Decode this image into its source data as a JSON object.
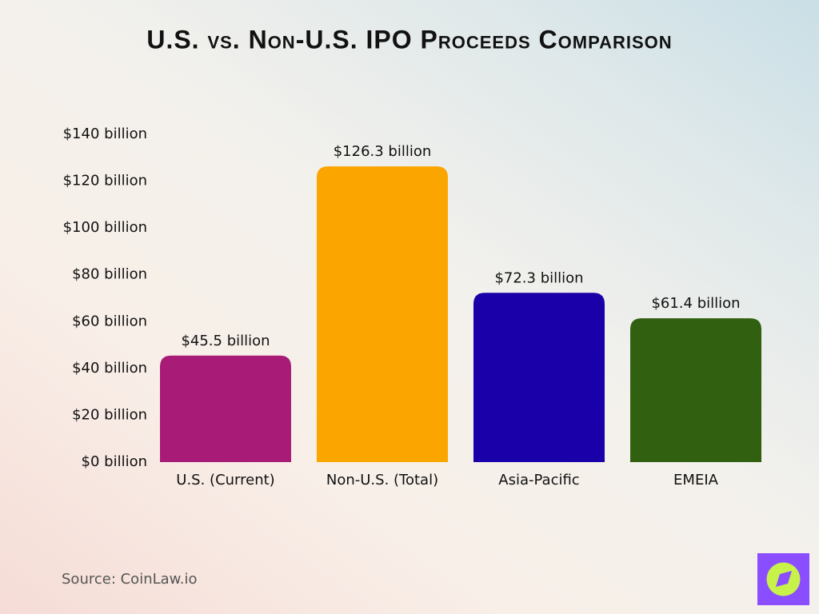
{
  "chart_data": {
    "type": "bar",
    "title": "U.S. vs. Non-U.S. IPO Proceeds Comparison",
    "categories": [
      "U.S. (Current)",
      "Non-U.S. (Total)",
      "Asia-Pacific",
      "EMEIA"
    ],
    "values": [
      45.5,
      126.3,
      72.3,
      61.4
    ],
    "value_labels": [
      "$45.5 billion",
      "$126.3 billion",
      "$72.3 billion",
      "$61.4 billion"
    ],
    "colors": [
      "#a81c78",
      "#fba500",
      "#1a00a8",
      "#316011"
    ],
    "ylim": [
      0,
      140
    ],
    "yticks": [
      {
        "value": 0,
        "label": "$0 billion"
      },
      {
        "value": 20,
        "label": "$20 billion"
      },
      {
        "value": 40,
        "label": "$40 billion"
      },
      {
        "value": 60,
        "label": "$60 billion"
      },
      {
        "value": 80,
        "label": "$80 billion"
      },
      {
        "value": 100,
        "label": "$100 billion"
      },
      {
        "value": 120,
        "label": "$120 billion"
      },
      {
        "value": 140,
        "label": "$140 billion"
      }
    ],
    "grid": false,
    "source": "Source: CoinLaw.io"
  }
}
